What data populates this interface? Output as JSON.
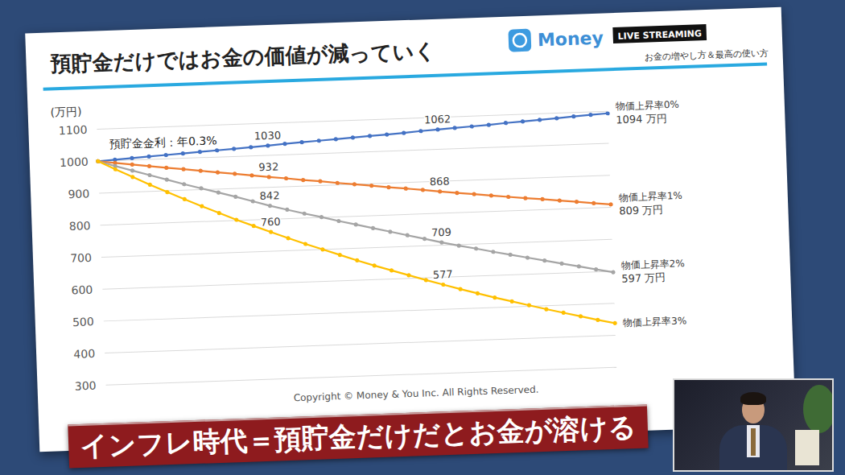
{
  "header": {
    "logo": "Money",
    "badge": "LIVE STREAMING",
    "subtitle": "お金の増やし方＆最高の使い方"
  },
  "caption": "インフレ時代＝預貯金だけだとお金が溶ける",
  "footer": "Copyright © Money & You Inc. All Rights Reserved.",
  "chart_data": {
    "type": "line",
    "title": "預貯金だけではお金の価値が減っていく",
    "y_label": "(万円)",
    "annotation": "預貯金金利：年0.3%",
    "x": [
      0,
      1,
      2,
      3,
      4,
      5,
      6,
      7,
      8,
      9,
      10,
      11,
      12,
      13,
      14,
      15,
      16,
      17,
      18,
      19,
      20,
      21,
      22,
      23,
      24,
      25,
      26,
      27,
      28,
      29,
      30
    ],
    "xlim": [
      0,
      30
    ],
    "ylim": [
      300,
      1100
    ],
    "yticks": [
      300,
      400,
      500,
      600,
      700,
      800,
      900,
      1000,
      1100
    ],
    "grid": true,
    "data_labels": true,
    "tick_labels": "y",
    "marker": "circle",
    "series": [
      {
        "name": "物価上昇率0%",
        "color": "#4472c4",
        "values": [
          1000,
          1003,
          1006,
          1009,
          1012,
          1015,
          1018,
          1021,
          1024,
          1027,
          1030,
          1034,
          1037,
          1040,
          1043,
          1046,
          1049,
          1052,
          1055,
          1059,
          1062,
          1065,
          1068,
          1071,
          1075,
          1078,
          1081,
          1084,
          1088,
          1091,
          1094
        ],
        "value_labels": [
          null,
          null,
          null,
          null,
          null,
          null,
          null,
          null,
          null,
          null,
          "1030",
          null,
          null,
          null,
          null,
          null,
          null,
          null,
          null,
          null,
          "1062",
          null,
          null,
          null,
          null,
          null,
          null,
          null,
          null,
          null,
          "1094 万円"
        ]
      },
      {
        "name": "物価上昇率1%",
        "color": "#ed7d31",
        "values": [
          1000,
          993,
          986,
          979,
          972,
          966,
          959,
          952,
          946,
          939,
          932,
          926,
          919,
          913,
          906,
          900,
          894,
          887,
          881,
          875,
          868,
          862,
          856,
          850,
          844,
          838,
          833,
          827,
          821,
          815,
          809
        ],
        "value_labels": [
          null,
          null,
          null,
          null,
          null,
          null,
          null,
          null,
          null,
          null,
          "932",
          null,
          null,
          null,
          null,
          null,
          null,
          null,
          null,
          null,
          "868",
          null,
          null,
          null,
          null,
          null,
          null,
          null,
          null,
          null,
          "809 万円"
        ]
      },
      {
        "name": "物価上昇率2%",
        "color": "#a5a5a5",
        "values": [
          1000,
          983,
          967,
          951,
          935,
          919,
          904,
          889,
          874,
          858,
          842,
          828,
          814,
          801,
          787,
          774,
          761,
          748,
          735,
          722,
          709,
          697,
          686,
          674,
          663,
          652,
          641,
          630,
          619,
          608,
          597
        ],
        "value_labels": [
          null,
          null,
          null,
          null,
          null,
          null,
          null,
          null,
          null,
          null,
          "842",
          null,
          null,
          null,
          null,
          null,
          null,
          null,
          null,
          null,
          "709",
          null,
          null,
          null,
          null,
          null,
          null,
          null,
          null,
          null,
          "597 万円"
        ]
      },
      {
        "name": "物価上昇率3%",
        "color": "#ffc000",
        "values": [
          1000,
          973,
          947,
          921,
          896,
          872,
          848,
          825,
          802,
          781,
          760,
          739,
          719,
          700,
          681,
          662,
          644,
          627,
          610,
          593,
          577,
          561,
          546,
          531,
          517,
          503,
          489,
          476,
          463,
          450,
          438
        ],
        "value_labels": [
          null,
          null,
          null,
          null,
          null,
          null,
          null,
          null,
          null,
          null,
          "760",
          null,
          null,
          null,
          null,
          null,
          null,
          null,
          null,
          null,
          "577",
          null,
          null,
          null,
          null,
          null,
          null,
          null,
          null,
          null,
          null
        ]
      }
    ]
  }
}
